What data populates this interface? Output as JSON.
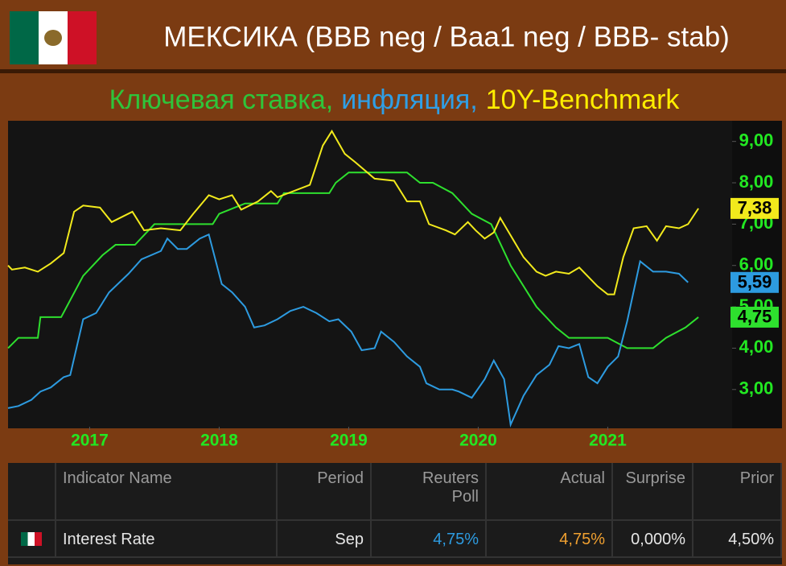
{
  "header": {
    "title": "МЕКСИКА (BBB neg / Baa1 neg / BBB- stab)"
  },
  "chart_data": {
    "type": "line",
    "subtitle": [
      {
        "text": "Ключевая ставка,",
        "color": "#2fc43a"
      },
      {
        "text": "инфляция,",
        "color": "#2f9fe6"
      },
      {
        "text": "10Y-Benchmark",
        "color": "#ffee00"
      }
    ],
    "xlim": [
      2016.37,
      2021.96
    ],
    "xticks": [
      2017,
      2018,
      2019,
      2020,
      2021
    ],
    "ylim": [
      2.1,
      9.5
    ],
    "yticks": [
      {
        "value": 3,
        "label": "3,00"
      },
      {
        "value": 4,
        "label": "4,00"
      },
      {
        "value": 5,
        "label": "5,00"
      },
      {
        "value": 6,
        "label": "6,00"
      },
      {
        "value": 7,
        "label": "7,00"
      },
      {
        "value": 8,
        "label": "8,00"
      },
      {
        "value": 9,
        "label": "9,00"
      }
    ],
    "series": [
      {
        "color": "#2ee02e",
        "end_label": "4,75",
        "x": [
          2016.37,
          2016.45,
          2016.6,
          2016.62,
          2016.78,
          2016.95,
          2017.1,
          2017.2,
          2017.35,
          2017.5,
          2017.95,
          2018.0,
          2018.2,
          2018.45,
          2018.5,
          2018.85,
          2018.9,
          2019.0,
          2019.45,
          2019.55,
          2019.65,
          2019.8,
          2019.95,
          2020.1,
          2020.25,
          2020.45,
          2020.6,
          2020.7,
          2021.0,
          2021.15,
          2021.35,
          2021.45,
          2021.6,
          2021.7
        ],
        "values": [
          4.0,
          4.25,
          4.25,
          4.75,
          4.75,
          5.75,
          6.25,
          6.5,
          6.5,
          7.0,
          7.0,
          7.25,
          7.5,
          7.5,
          7.75,
          7.75,
          8.0,
          8.25,
          8.25,
          8.0,
          8.0,
          7.75,
          7.25,
          7.0,
          6.0,
          5.0,
          4.5,
          4.25,
          4.25,
          4.0,
          4.0,
          4.25,
          4.5,
          4.75
        ]
      },
      {
        "color": "#2d9be0",
        "end_label": "5,59",
        "x": [
          2016.37,
          2016.45,
          2016.55,
          2016.62,
          2016.7,
          2016.8,
          2016.85,
          2016.95,
          2017.05,
          2017.15,
          2017.3,
          2017.4,
          2017.55,
          2017.6,
          2017.68,
          2017.75,
          2017.85,
          2017.92,
          2018.02,
          2018.1,
          2018.2,
          2018.27,
          2018.35,
          2018.45,
          2018.55,
          2018.65,
          2018.75,
          2018.85,
          2018.92,
          2019.02,
          2019.1,
          2019.2,
          2019.25,
          2019.35,
          2019.45,
          2019.55,
          2019.6,
          2019.7,
          2019.8,
          2019.85,
          2019.95,
          2020.05,
          2020.12,
          2020.2,
          2020.25,
          2020.35,
          2020.45,
          2020.55,
          2020.62,
          2020.7,
          2020.78,
          2020.85,
          2020.92,
          2021.0,
          2021.08,
          2021.15,
          2021.25,
          2021.35,
          2021.45,
          2021.55,
          2021.62
        ],
        "values": [
          2.55,
          2.6,
          2.75,
          2.95,
          3.05,
          3.3,
          3.35,
          4.7,
          4.85,
          5.35,
          5.8,
          6.15,
          6.35,
          6.65,
          6.4,
          6.4,
          6.65,
          6.75,
          5.55,
          5.35,
          5.0,
          4.5,
          4.55,
          4.7,
          4.9,
          5.0,
          4.85,
          4.65,
          4.7,
          4.4,
          3.95,
          4.0,
          4.4,
          4.15,
          3.8,
          3.55,
          3.15,
          3.0,
          3.0,
          2.95,
          2.8,
          3.25,
          3.7,
          3.25,
          2.15,
          2.85,
          3.35,
          3.6,
          4.05,
          4.0,
          4.1,
          3.3,
          3.15,
          3.55,
          3.8,
          4.65,
          6.1,
          5.85,
          5.85,
          5.8,
          5.59
        ]
      },
      {
        "color": "#f2ea1c",
        "end_label": "7,38",
        "x": [
          2016.37,
          2016.4,
          2016.5,
          2016.6,
          2016.7,
          2016.8,
          2016.88,
          2016.95,
          2017.08,
          2017.17,
          2017.33,
          2017.42,
          2017.55,
          2017.7,
          2017.8,
          2017.92,
          2018.0,
          2018.1,
          2018.17,
          2018.3,
          2018.4,
          2018.45,
          2018.7,
          2018.8,
          2018.87,
          2018.97,
          2019.05,
          2019.2,
          2019.35,
          2019.45,
          2019.55,
          2019.62,
          2019.75,
          2019.82,
          2019.92,
          2019.98,
          2020.05,
          2020.12,
          2020.17,
          2020.35,
          2020.45,
          2020.52,
          2020.6,
          2020.7,
          2020.78,
          2020.92,
          2021.0,
          2021.05,
          2021.12,
          2021.2,
          2021.3,
          2021.38,
          2021.45,
          2021.55,
          2021.62,
          2021.7
        ],
        "values": [
          6.0,
          5.9,
          5.95,
          5.85,
          6.05,
          6.3,
          7.3,
          7.45,
          7.4,
          7.05,
          7.3,
          6.85,
          6.9,
          6.85,
          7.25,
          7.7,
          7.6,
          7.7,
          7.35,
          7.55,
          7.8,
          7.65,
          7.95,
          8.9,
          9.25,
          8.7,
          8.5,
          8.1,
          8.05,
          7.55,
          7.55,
          7.0,
          6.85,
          6.75,
          7.05,
          6.85,
          6.65,
          6.8,
          7.15,
          6.2,
          5.85,
          5.75,
          5.85,
          5.8,
          5.95,
          5.5,
          5.3,
          5.3,
          6.2,
          6.9,
          6.95,
          6.6,
          6.95,
          6.9,
          7.0,
          7.38
        ]
      }
    ]
  },
  "table": {
    "headers": [
      "Indicator Name",
      "Period",
      "Reuters Poll",
      "Actual",
      "Surprise",
      "Prior"
    ],
    "rows": [
      [
        "Interest Rate",
        "Sep",
        "4,75%",
        "4,75%",
        "0,000%",
        "4,50%"
      ]
    ]
  }
}
